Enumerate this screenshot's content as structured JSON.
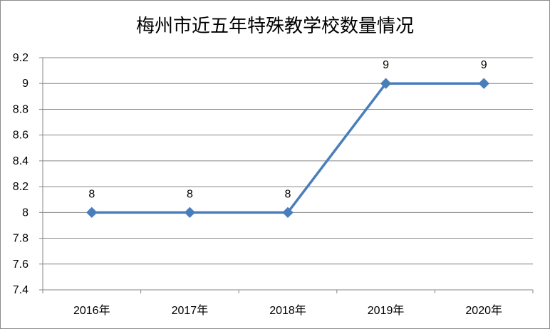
{
  "chart_data": {
    "type": "line",
    "title": "梅州市近五年特殊教学校数量情况",
    "xlabel": "",
    "ylabel": "",
    "categories": [
      "2016年",
      "2017年",
      "2018年",
      "2019年",
      "2020年"
    ],
    "series": [
      {
        "values": [
          8,
          8,
          8,
          9,
          9
        ]
      }
    ],
    "data_labels": [
      "8",
      "8",
      "8",
      "9",
      "9"
    ],
    "ylim": [
      7.4,
      9.2
    ],
    "yticks": [
      "7.4",
      "7.6",
      "7.8",
      "8",
      "8.2",
      "8.4",
      "8.6",
      "8.8",
      "9",
      "9.2"
    ],
    "grid": true,
    "legend": "none",
    "colors": {
      "line": "#4a7ebb",
      "grid": "#868686",
      "axis": "#868686"
    }
  }
}
